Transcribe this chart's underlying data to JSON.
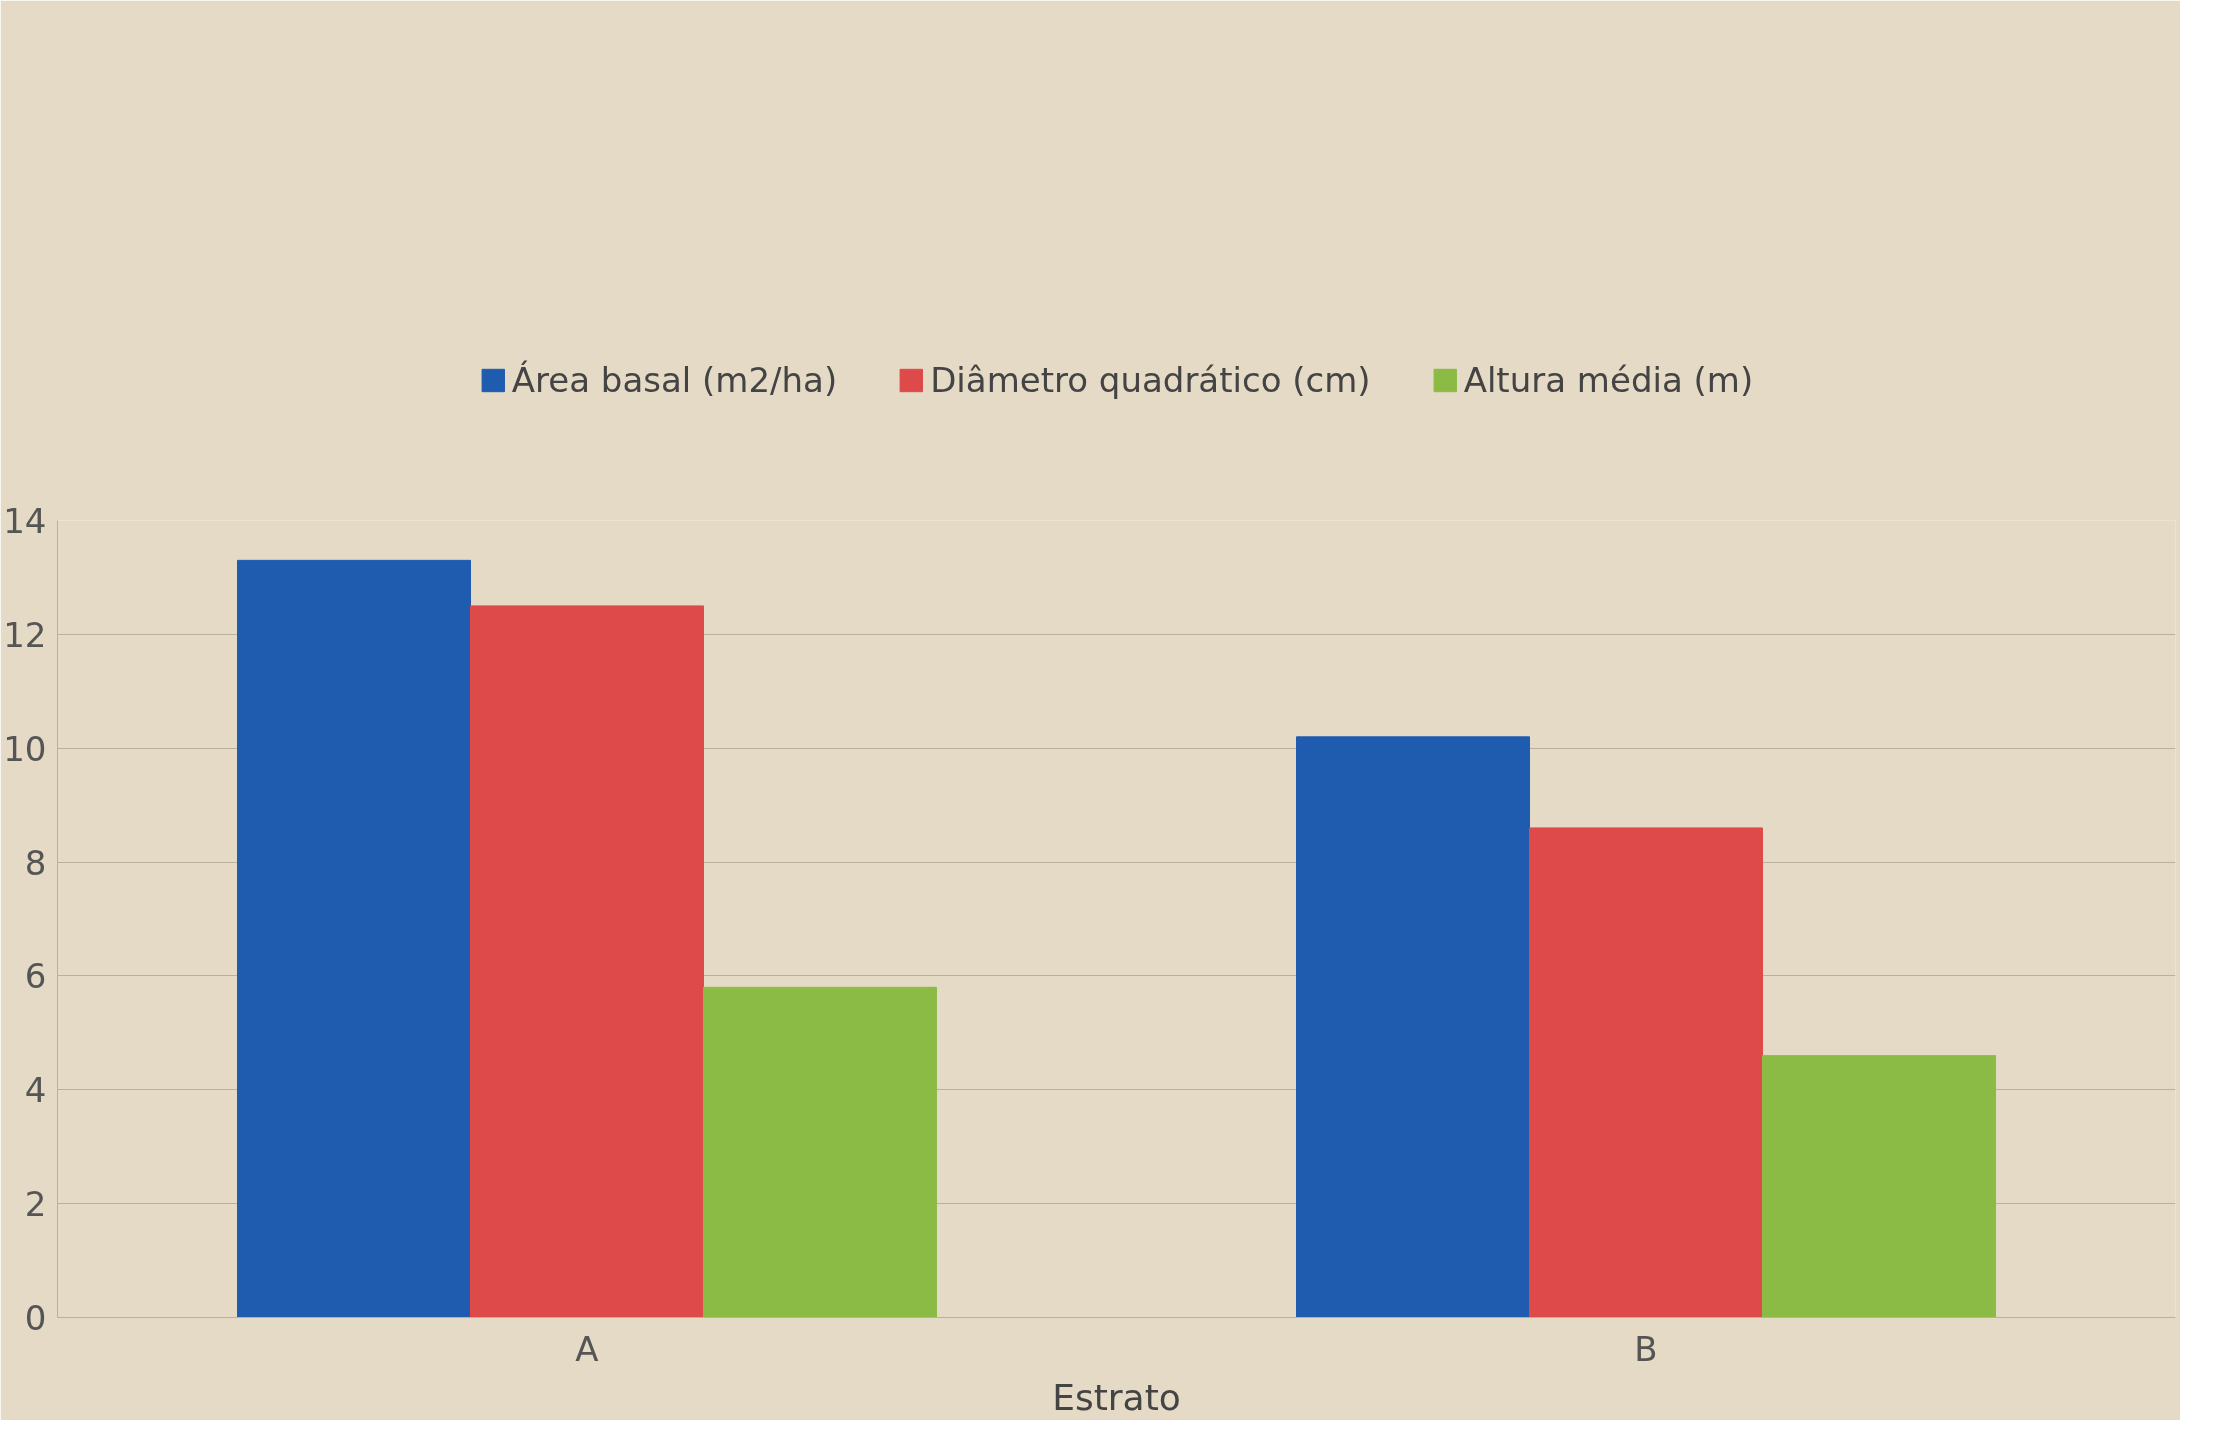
{
  "chart_data": {
    "type": "bar",
    "xlabel": "Estrato",
    "categories": [
      "A",
      "B"
    ],
    "series": [
      {
        "name": "Área basal (m2/ha)",
        "color": "#1f5cb0",
        "values": [
          13.3,
          10.2
        ]
      },
      {
        "name": "Diâmetro quadrático (cm)",
        "color": "#de4a4a",
        "values": [
          12.5,
          8.6
        ]
      },
      {
        "name": "Altura média (m)",
        "color": "#8cbb45",
        "values": [
          5.8,
          4.6
        ]
      }
    ],
    "ylim": [
      0,
      14
    ],
    "yticks": [
      0,
      2,
      4,
      6,
      8,
      10,
      12,
      14
    ],
    "grid": "y",
    "legend": "top"
  }
}
